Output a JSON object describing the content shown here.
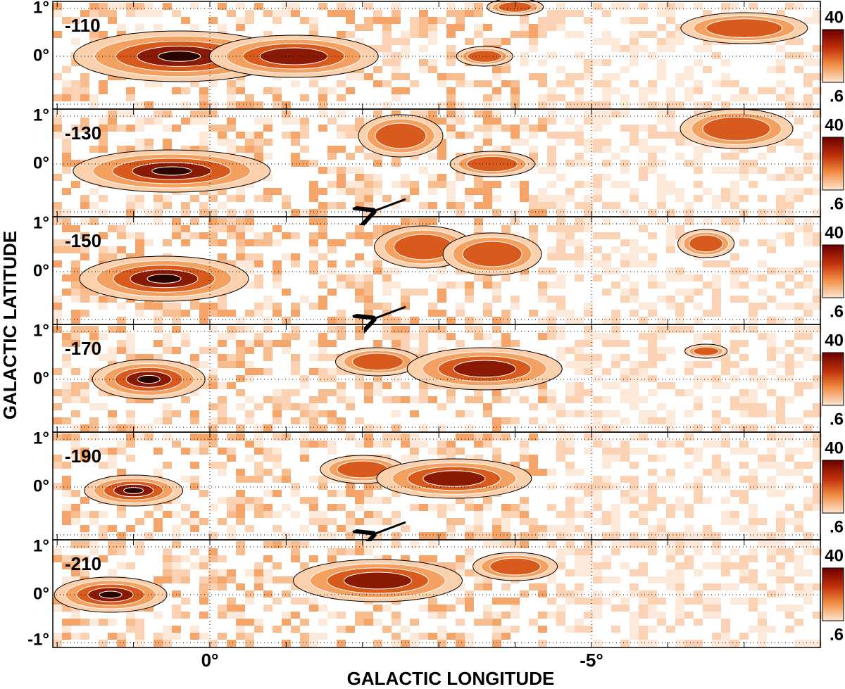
{
  "x_axis": {
    "label": "GALACTIC LONGITUDE",
    "ticks": [
      "0°",
      "-5°"
    ]
  },
  "y_axis": {
    "label": "GALACTIC LATITUDE",
    "ticks": [
      "1°",
      "0°",
      "-1°"
    ]
  },
  "panels": [
    {
      "label": "-110"
    },
    {
      "label": "-130"
    },
    {
      "label": "-150"
    },
    {
      "label": "-170"
    },
    {
      "label": "-190"
    },
    {
      "label": "-210"
    }
  ],
  "colorbar": {
    "max_label": "40",
    "min_label": ".6"
  }
}
